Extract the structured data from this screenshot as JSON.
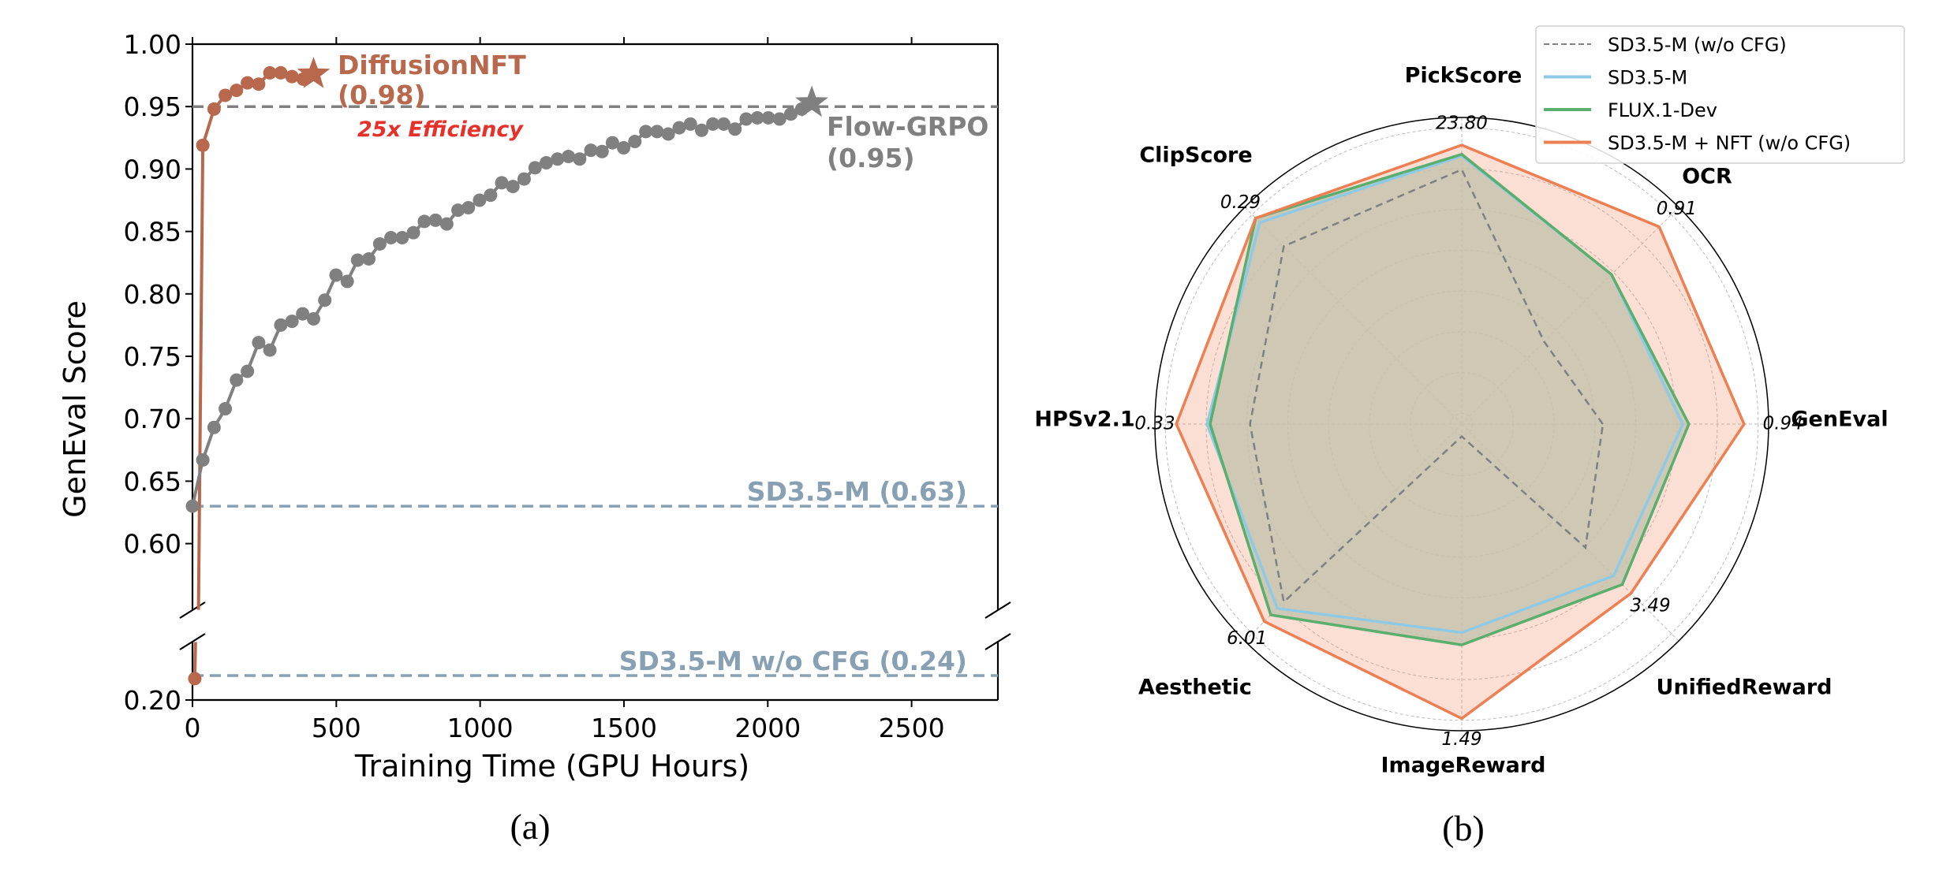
{
  "chart_data": [
    {
      "panel_label": "(a)",
      "type": "line",
      "xlabel": "Training Time (GPU Hours)",
      "ylabel": "GenEval Score",
      "xlim": [
        0,
        2800
      ],
      "ylim_upper": [
        0.547,
        1.0
      ],
      "ylim_lower": [
        0.2,
        0.295
      ],
      "broken_y_axis": true,
      "grid": false,
      "x_ticks": [
        "0",
        "500",
        "1000",
        "1500",
        "2000",
        "2500"
      ],
      "x_tick_values": [
        0,
        500,
        1000,
        1500,
        2000,
        2500
      ],
      "y_ticks_upper": [
        "1.00",
        "0.95",
        "0.90",
        "0.85",
        "0.80",
        "0.75",
        "0.70",
        "0.65",
        "0.60"
      ],
      "y_tick_values_upper": [
        1.0,
        0.95,
        0.9,
        0.85,
        0.8,
        0.75,
        0.7,
        0.65,
        0.6
      ],
      "y_ticks_lower": [
        "0.20"
      ],
      "y_tick_values_lower": [
        0.2
      ],
      "series": [
        {
          "name": "DiffusionNFT",
          "color": "#b8694d",
          "final_label": "(0.98)",
          "x": [
            8,
            36,
            75,
            114,
            153,
            191,
            230,
            269,
            307,
            346,
            385,
            421
          ],
          "y": [
            0.235,
            0.919,
            0.948,
            0.959,
            0.963,
            0.969,
            0.968,
            0.977,
            0.977,
            0.974,
            0.972,
            0.976
          ]
        },
        {
          "name": "Flow-GRPO",
          "color": "#808080",
          "final_label": "(0.95)",
          "x": [
            0,
            36,
            75,
            114,
            153,
            191,
            230,
            269,
            307,
            346,
            383,
            421,
            460,
            499,
            538,
            574,
            613,
            651,
            690,
            729,
            768,
            806,
            845,
            884,
            923,
            959,
            998,
            1036,
            1075,
            1114,
            1153,
            1191,
            1230,
            1269,
            1307,
            1346,
            1385,
            1424,
            1460,
            1499,
            1538,
            1576,
            1615,
            1654,
            1692,
            1731,
            1770,
            1809,
            1847,
            1886,
            1925,
            1964,
            2002,
            2041,
            2080,
            2118,
            2153
          ],
          "y": [
            0.63,
            0.667,
            0.693,
            0.708,
            0.731,
            0.738,
            0.761,
            0.755,
            0.775,
            0.778,
            0.784,
            0.78,
            0.795,
            0.815,
            0.81,
            0.827,
            0.828,
            0.84,
            0.845,
            0.845,
            0.849,
            0.858,
            0.859,
            0.856,
            0.867,
            0.869,
            0.875,
            0.879,
            0.889,
            0.886,
            0.892,
            0.901,
            0.905,
            0.908,
            0.91,
            0.908,
            0.915,
            0.914,
            0.921,
            0.917,
            0.922,
            0.93,
            0.93,
            0.928,
            0.933,
            0.936,
            0.931,
            0.936,
            0.936,
            0.932,
            0.94,
            0.941,
            0.941,
            0.94,
            0.944,
            0.948,
            0.953
          ]
        }
      ],
      "reference_lines": [
        {
          "y": 0.95,
          "color": "#808080",
          "label": ""
        },
        {
          "y": 0.63,
          "color": "#87a0b3",
          "label": "SD3.5-M (0.63)"
        },
        {
          "y": 0.24,
          "color": "#87a0b3",
          "label": "SD3.5-M w/o CFG (0.24)"
        }
      ],
      "annotation": {
        "text": "25x Efficiency",
        "color": "#e8302a"
      }
    },
    {
      "panel_label": "(b)",
      "type": "radar",
      "normalized": true,
      "rlim": [
        0,
        1
      ],
      "grid": true,
      "legend_position": "top-right",
      "axes": [
        "GenEval",
        "OCR",
        "PickScore",
        "ClipScore",
        "HPSv2.1",
        "Aesthetic",
        "ImageReward",
        "UnifiedReward"
      ],
      "axis_max_labels": [
        "0.94",
        "0.91",
        "23.80",
        "0.29",
        "0.33",
        "6.01",
        "1.49",
        "3.49"
      ],
      "series": [
        {
          "name": "SD3.5-M (w/o CFG)",
          "color": "#808080",
          "style": "dashed",
          "values": [
            0.46,
            0.38,
            0.83,
            0.82,
            0.69,
            0.82,
            0.04,
            0.57
          ]
        },
        {
          "name": "SD3.5-M",
          "color": "#8ecae6",
          "style": "solid",
          "values": [
            0.72,
            0.69,
            0.875,
            0.93,
            0.83,
            0.85,
            0.68,
            0.7
          ]
        },
        {
          "name": "FLUX.1-Dev",
          "color": "#5aae6e",
          "style": "solid",
          "values": [
            0.74,
            0.69,
            0.88,
            0.95,
            0.82,
            0.88,
            0.72,
            0.74
          ]
        },
        {
          "name": "SD3.5-M + NFT (w/o CFG)",
          "color": "#ee7f52",
          "style": "solid",
          "values": [
            0.92,
            0.91,
            0.91,
            0.95,
            0.93,
            0.91,
            0.96,
            0.78
          ]
        }
      ]
    }
  ]
}
